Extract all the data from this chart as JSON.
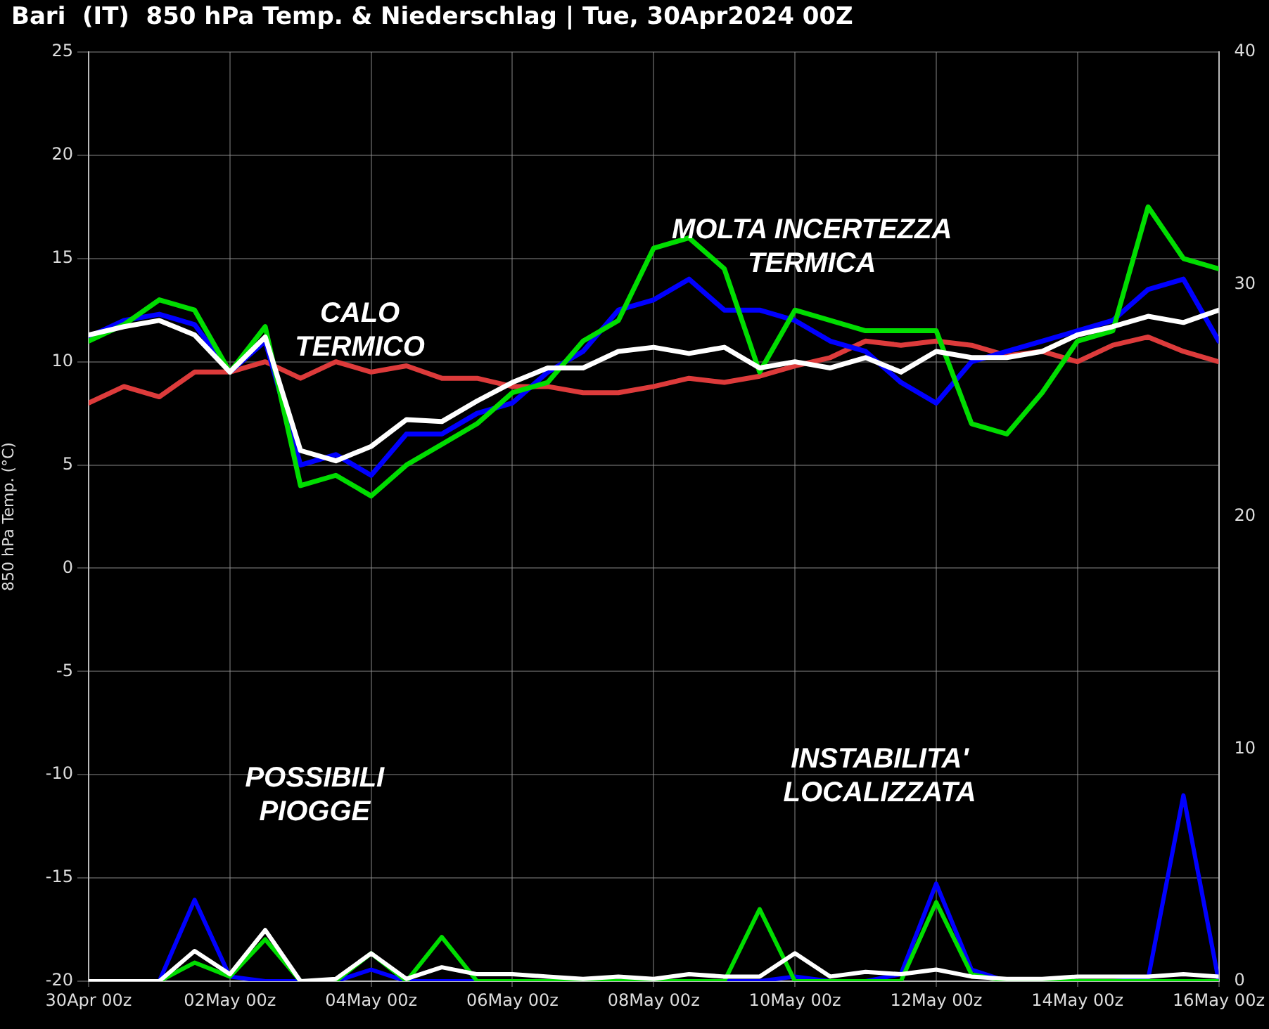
{
  "chart_data": {
    "type": "line",
    "title": "Bari  (IT)  850 hPa Temp. & Niederschlag | Tue, 30Apr2024 00Z",
    "ylabel": "850 hPa Temp. (°C)",
    "x": [
      "2024-04-30T00:00",
      "2024-04-30T12:00",
      "2024-05-01T00:00",
      "2024-05-01T12:00",
      "2024-05-02T00:00",
      "2024-05-02T12:00",
      "2024-05-03T00:00",
      "2024-05-03T12:00",
      "2024-05-04T00:00",
      "2024-05-04T12:00",
      "2024-05-05T00:00",
      "2024-05-05T12:00",
      "2024-05-06T00:00",
      "2024-05-06T12:00",
      "2024-05-07T00:00",
      "2024-05-07T12:00",
      "2024-05-08T00:00",
      "2024-05-08T12:00",
      "2024-05-09T00:00",
      "2024-05-09T12:00",
      "2024-05-10T00:00",
      "2024-05-10T12:00",
      "2024-05-11T00:00",
      "2024-05-11T12:00",
      "2024-05-12T00:00",
      "2024-05-12T12:00",
      "2024-05-13T00:00",
      "2024-05-13T12:00",
      "2024-05-14T00:00",
      "2024-05-14T12:00",
      "2024-05-15T00:00",
      "2024-05-15T12:00",
      "2024-05-16T00:00"
    ],
    "series": [
      {
        "color": "#dd3b3b",
        "values": [
          8,
          8.8,
          8.3,
          9.5,
          9.5,
          10,
          9.2,
          10,
          9.5,
          9.8,
          9.2,
          9.2,
          8.8,
          8.8,
          8.5,
          8.5,
          8.8,
          9.2,
          9,
          9.3,
          9.8,
          10.2,
          11,
          10.8,
          11,
          10.8,
          10.3,
          10.5,
          10,
          10.8,
          11.2,
          10.5,
          10
        ]
      },
      {
        "color": "#0000ff",
        "values": [
          11.2,
          12,
          12.3,
          11.8,
          9.5,
          11,
          5,
          5.5,
          4.5,
          6.5,
          6.5,
          7.5,
          8,
          9.5,
          10.5,
          12.5,
          13,
          14,
          12.5,
          12.5,
          12,
          11,
          10.5,
          9,
          8,
          10,
          10.5,
          11,
          11.5,
          12,
          13.5,
          14,
          11
        ]
      },
      {
        "color": "#00dd00",
        "values": [
          11,
          11.8,
          13,
          12.5,
          9.5,
          11.7,
          4,
          4.5,
          3.5,
          5,
          6,
          7,
          8.5,
          9,
          11,
          12,
          15.5,
          16,
          14.5,
          9.5,
          12.5,
          12,
          11.5,
          11.5,
          11.5,
          7,
          6.5,
          8.5,
          11,
          11.5,
          17.5,
          15,
          14.5
        ]
      },
      {
        "color": "#ffffff",
        "values": [
          11.3,
          11.7,
          12,
          11.3,
          9.5,
          11.2,
          5.7,
          5.2,
          5.9,
          7.2,
          7.1,
          8.1,
          9,
          9.7,
          9.7,
          10.5,
          10.7,
          10.4,
          10.7,
          9.7,
          10,
          9.7,
          10.2,
          9.5,
          10.5,
          10.2,
          10.2,
          10.5,
          11.3,
          11.7,
          12.2,
          11.9,
          12.5
        ]
      },
      {
        "color": "#0000ff",
        "axis": "y2",
        "values": [
          0,
          0,
          0,
          3.5,
          0.2,
          0,
          0,
          0,
          0.5,
          0,
          0,
          0,
          0,
          0,
          0,
          0,
          0,
          0,
          0,
          0,
          0.2,
          0,
          0,
          0.3,
          4.2,
          0.5,
          0,
          0,
          0,
          0,
          0.1,
          8,
          0
        ]
      },
      {
        "color": "#00dd00",
        "axis": "y2",
        "values": [
          0,
          0,
          0,
          0.8,
          0.2,
          1.8,
          0,
          0,
          1.2,
          0,
          1.9,
          0,
          0,
          0,
          0,
          0,
          0,
          0,
          0,
          3.1,
          0,
          0,
          0,
          0,
          3.4,
          0.3,
          0,
          0,
          0,
          0,
          0,
          0,
          0
        ]
      },
      {
        "color": "#ffffff",
        "axis": "y2",
        "values": [
          0,
          0,
          0,
          1.3,
          0.3,
          2.2,
          0,
          0.1,
          1.2,
          0.1,
          0.6,
          0.3,
          0.3,
          0.2,
          0.1,
          0.2,
          0.1,
          0.3,
          0.2,
          0.2,
          1.2,
          0.2,
          0.4,
          0.3,
          0.5,
          0.2,
          0.1,
          0.1,
          0.2,
          0.2,
          0.2,
          0.3,
          0.2
        ]
      }
    ],
    "xlim": [
      "2024-04-30T00:00",
      "2024-05-16T00:00"
    ],
    "xticks": [
      {
        "value": "2024-04-30T00:00",
        "label": "30Apr 00z"
      },
      {
        "value": "2024-05-02T00:00",
        "label": "02May 00z"
      },
      {
        "value": "2024-05-04T00:00",
        "label": "04May 00z"
      },
      {
        "value": "2024-05-06T00:00",
        "label": "06May 00z"
      },
      {
        "value": "2024-05-08T00:00",
        "label": "08May 00z"
      },
      {
        "value": "2024-05-10T00:00",
        "label": "10May 00z"
      },
      {
        "value": "2024-05-12T00:00",
        "label": "12May 00z"
      },
      {
        "value": "2024-05-14T00:00",
        "label": "14May 00z"
      },
      {
        "value": "2024-05-16T00:00",
        "label": "16May 00z"
      }
    ],
    "ylim": [
      -20,
      25
    ],
    "yticks": [
      -20,
      -15,
      -10,
      -5,
      0,
      5,
      10,
      15,
      20,
      25
    ],
    "y2lim": [
      0,
      40
    ],
    "y2ticks": [
      0,
      10,
      20,
      30,
      40
    ],
    "grid": true,
    "marker": "none",
    "line_style": "solid",
    "annotations": [
      "CALO\nTERMICO",
      "MOLTA INCERTEZZA\nTERMICA",
      "POSSIBILI\nPIOGGE",
      "INSTABILITA'\nLOCALIZZATA"
    ]
  }
}
